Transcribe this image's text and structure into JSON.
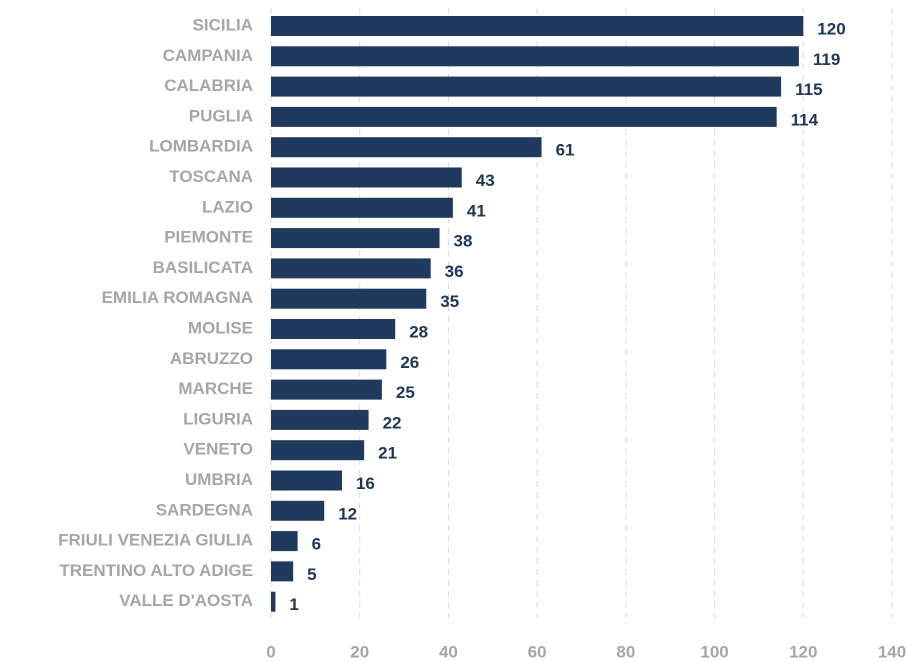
{
  "chart_data": {
    "type": "bar",
    "orientation": "horizontal",
    "categories": [
      "SICILIA",
      "CAMPANIA",
      "CALABRIA",
      "PUGLIA",
      "LOMBARDIA",
      "TOSCANA",
      "LAZIO",
      "PIEMONTE",
      "BASILICATA",
      "EMILIA ROMAGNA",
      "MOLISE",
      "ABRUZZO",
      "MARCHE",
      "LIGURIA",
      "VENETO",
      "UMBRIA",
      "SARDEGNA",
      "FRIULI VENEZIA GIULIA",
      "TRENTINO ALTO ADIGE",
      "VALLE D'AOSTA"
    ],
    "values": [
      120,
      119,
      115,
      114,
      61,
      43,
      41,
      38,
      36,
      35,
      28,
      26,
      25,
      22,
      21,
      16,
      12,
      6,
      5,
      1
    ],
    "color": "#1f3a5c",
    "xlim": [
      0,
      140
    ],
    "xticks": [
      0,
      20,
      40,
      60,
      80,
      100,
      120,
      140
    ],
    "grid": true
  }
}
